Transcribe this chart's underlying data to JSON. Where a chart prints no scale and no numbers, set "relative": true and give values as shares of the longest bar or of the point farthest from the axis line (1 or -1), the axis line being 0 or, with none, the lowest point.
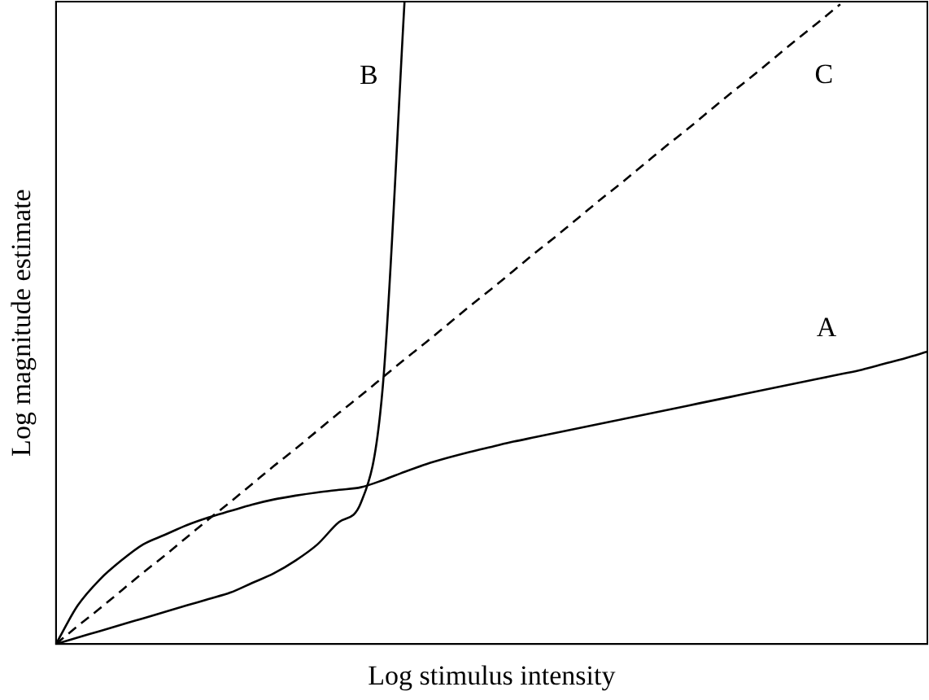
{
  "chart_data": {
    "type": "line",
    "relative": true,
    "xlabel": "Log stimulus intensity",
    "ylabel": "Log magnitude estimate",
    "categories": [
      null,
      null,
      null,
      null,
      null,
      null,
      null,
      null,
      null,
      null,
      null,
      null,
      null,
      null,
      null,
      null,
      null,
      null,
      null,
      null,
      null,
      null,
      null,
      null,
      null,
      null,
      null,
      null,
      null,
      null,
      null,
      null,
      null,
      null,
      null,
      null,
      null,
      null,
      null,
      null,
      null
    ],
    "series": [
      {
        "name": "A",
        "color": "#000000",
        "line_style": "solid",
        "values": [
          0,
          0.06,
          0.1,
          0.13,
          0.155,
          0.17,
          0.185,
          0.197,
          0.207,
          0.217,
          0.225,
          0.231,
          0.236,
          0.24,
          0.244,
          0.255,
          0.268,
          0.28,
          0.29,
          0.299,
          0.307,
          0.315,
          0.322,
          0.329,
          0.336,
          0.343,
          0.35,
          0.357,
          0.364,
          0.371,
          0.378,
          0.385,
          0.392,
          0.399,
          0.406,
          0.413,
          0.42,
          0.427,
          0.436,
          0.445,
          0.455
        ]
      },
      {
        "name": "B",
        "color": "#000000",
        "line_style": "solid",
        "values": [
          0,
          0.01,
          0.02,
          0.03,
          0.04,
          0.05,
          0.06,
          0.07,
          0.08,
          0.095,
          0.11,
          0.13,
          0.155,
          0.19,
          0.22,
          0.4,
          1,
          null,
          null,
          null,
          null,
          null,
          null,
          null,
          null,
          null,
          null,
          null,
          null,
          null,
          null,
          null,
          null,
          null,
          null,
          null,
          null,
          null,
          null,
          null,
          null
        ]
      },
      {
        "name": "C",
        "color": "#000000",
        "line_style": "dashed",
        "values": [
          0,
          0.028,
          0.055,
          0.083,
          0.111,
          0.138,
          0.166,
          0.194,
          0.221,
          0.249,
          0.277,
          0.304,
          0.332,
          0.36,
          0.387,
          0.415,
          0.443,
          0.47,
          0.498,
          0.526,
          0.553,
          0.581,
          0.609,
          0.636,
          0.664,
          0.692,
          0.719,
          0.747,
          0.775,
          0.802,
          0.83,
          0.858,
          0.885,
          0.913,
          0.941,
          0.968,
          0.996,
          null,
          null,
          null,
          null
        ]
      }
    ],
    "grid": false,
    "legend": false,
    "marker": "none"
  }
}
